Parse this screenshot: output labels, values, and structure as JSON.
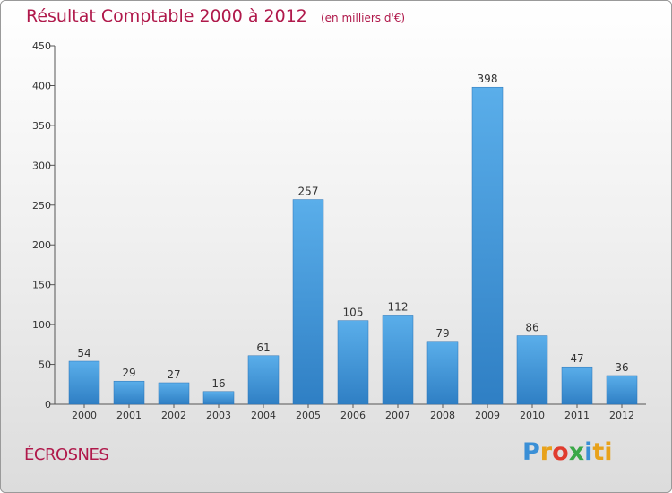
{
  "chart_data": {
    "type": "bar",
    "title": "Résultat Comptable 2000 à 2012",
    "subtitle": "(en milliers d'€)",
    "categories": [
      "2000",
      "2001",
      "2002",
      "2003",
      "2004",
      "2005",
      "2006",
      "2007",
      "2008",
      "2009",
      "2010",
      "2011",
      "2012"
    ],
    "values": [
      54,
      29,
      27,
      16,
      61,
      257,
      105,
      112,
      79,
      398,
      86,
      47,
      36
    ],
    "ylim": [
      0,
      450
    ],
    "yticks": [
      0,
      50,
      100,
      150,
      200,
      250,
      300,
      350,
      400,
      450
    ],
    "xlabel": "",
    "ylabel": "",
    "grid": false,
    "bar_color": "#3e93d6"
  },
  "location": {
    "name": "ÉCROSNES"
  },
  "brand": {
    "logo_text": "Proxiti",
    "letters": [
      "P",
      "r",
      "o",
      "x",
      "i",
      "ti"
    ]
  }
}
